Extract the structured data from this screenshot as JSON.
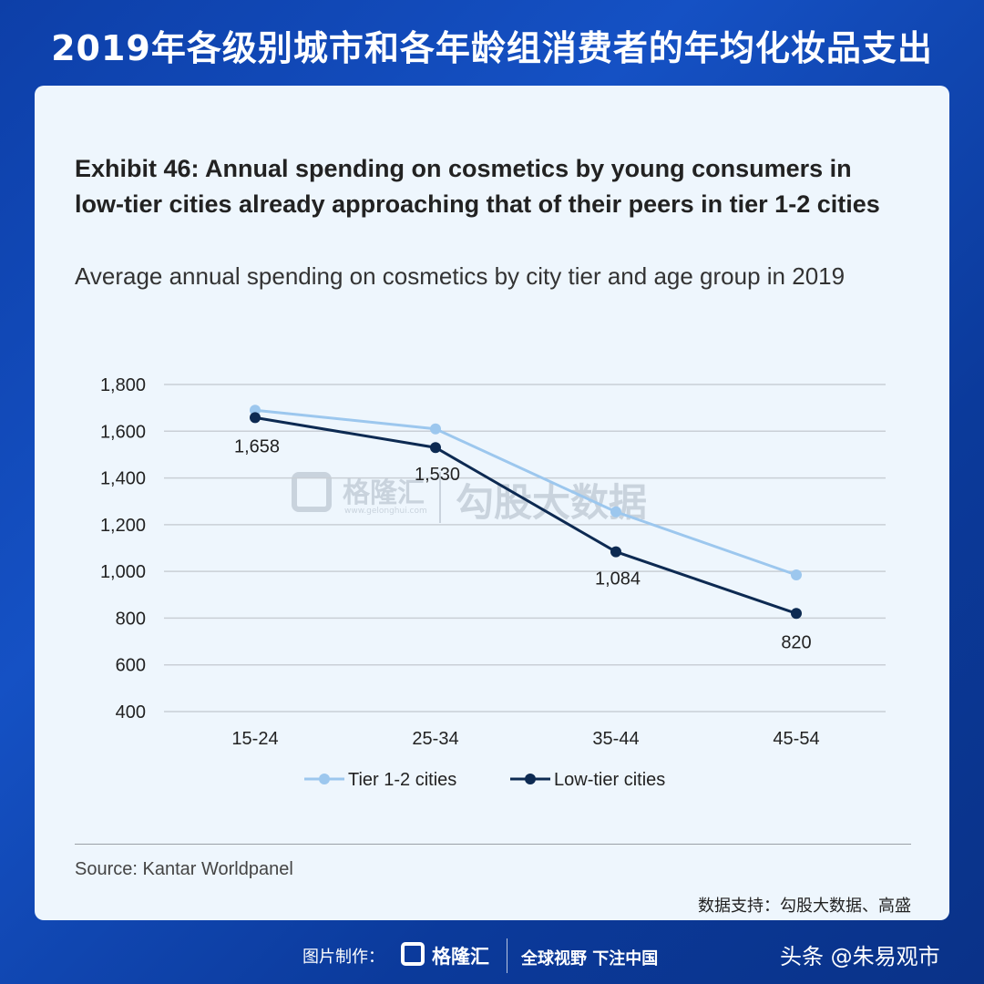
{
  "header": {
    "title": "2019年各级别城市和各年龄组消费者的年均化妆品支出"
  },
  "exhibit": {
    "title": "Exhibit 46: Annual spending on cosmetics by young consumers in low-tier cities already approaching that of their peers in tier 1-2 cities",
    "subtitle": "Average annual spending on cosmetics by city tier and age group in 2019"
  },
  "chart_data": {
    "type": "line",
    "categories": [
      "15-24",
      "25-34",
      "35-44",
      "45-54"
    ],
    "ylim": [
      400,
      1800
    ],
    "yticks": [
      400,
      600,
      800,
      1000,
      1200,
      1400,
      1600,
      1800
    ],
    "ytick_labels": [
      "400",
      "600",
      "800",
      "1,000",
      "1,200",
      "1,400",
      "1,600",
      "1,800"
    ],
    "grid": true,
    "legend_position": "bottom-center",
    "series": [
      {
        "name": "Tier 1-2 cities",
        "values": [
          1690,
          1610,
          1255,
          985
        ],
        "color": "#9cc7ee",
        "labels": [
          "",
          "",
          "",
          ""
        ]
      },
      {
        "name": "Low-tier cities",
        "values": [
          1658,
          1530,
          1084,
          820
        ],
        "color": "#0d2a52",
        "labels": [
          "1,658",
          "1,530",
          "1,084",
          "820"
        ]
      }
    ]
  },
  "watermark": {
    "brand": "格隆汇",
    "url": "www.gelonghui.com",
    "partner": "勾股大数据"
  },
  "source": "Source: Kantar Worldpanel",
  "support": "数据支持：勾股大数据、高盛",
  "footer": {
    "made_by": "图片制作：",
    "brand": "格隆汇",
    "slogan": "全球视野 下注中国",
    "handle": "头条 @朱易观市"
  },
  "colors": {
    "background": "#1551c4",
    "card": "#eef6fd",
    "tier12": "#9cc7ee",
    "lowtier": "#0d2a52"
  }
}
